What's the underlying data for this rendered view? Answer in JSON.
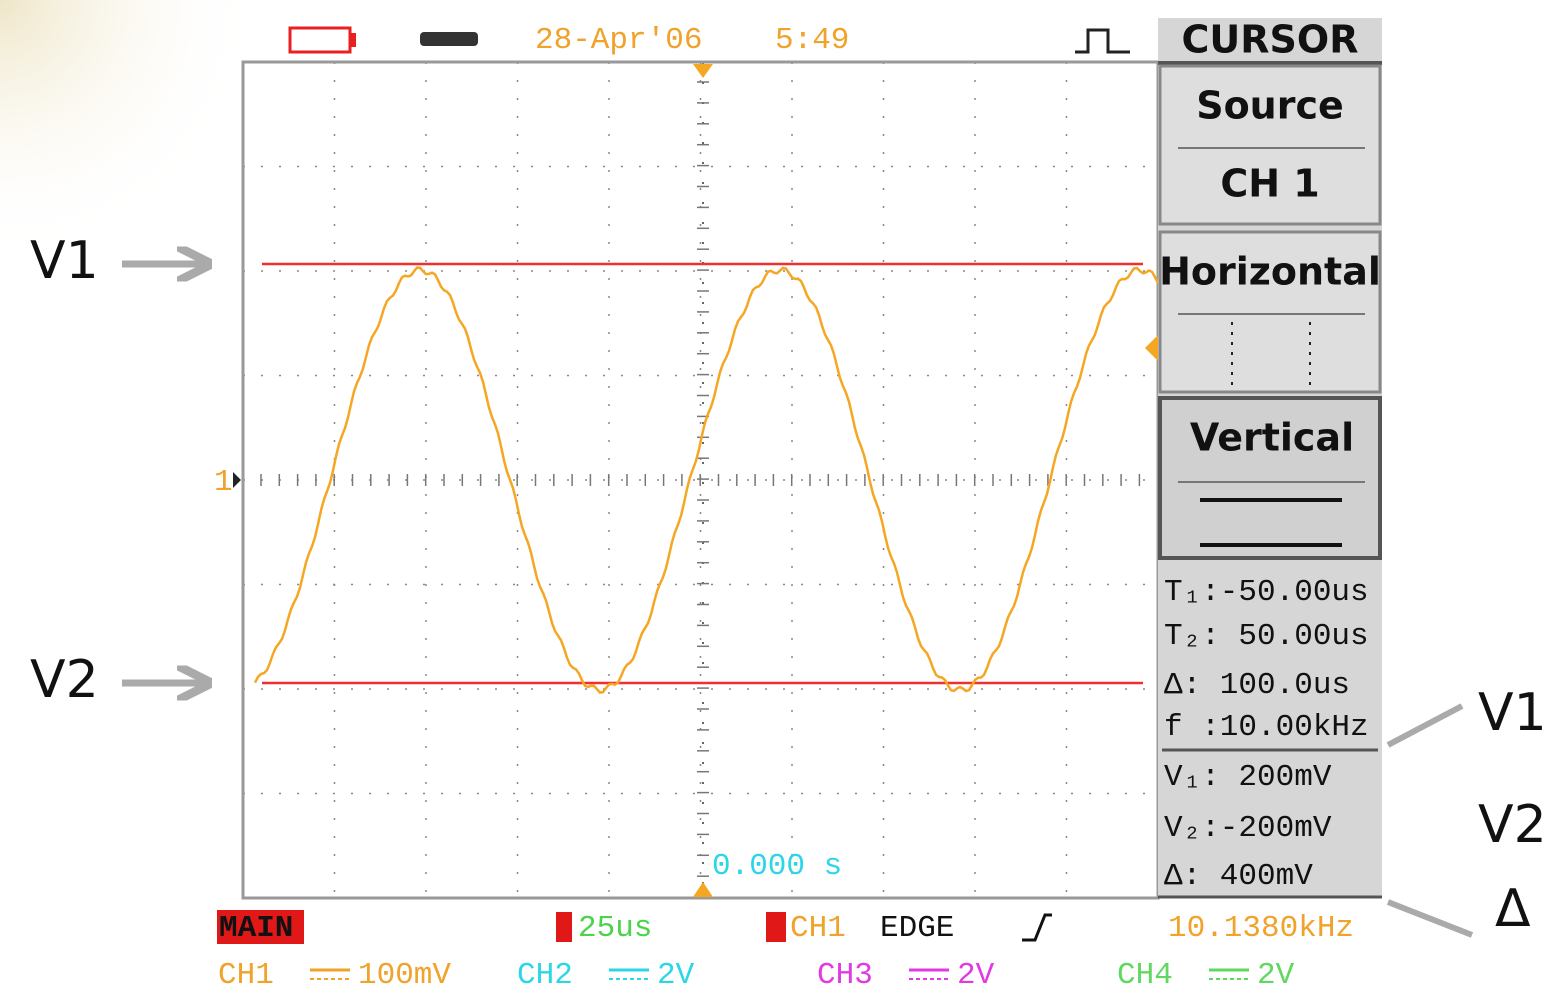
{
  "header": {
    "date": "28-Apr'06",
    "time": "5:49",
    "mode": "CURSOR"
  },
  "menu": {
    "source_label": "Source",
    "source_value": "CH 1",
    "horizontal": "Horizontal",
    "vertical": "Vertical"
  },
  "readouts": {
    "time": [
      "T₁:-50.00us",
      "T₂: 50.00us",
      "Δ: 100.0us",
      "f :10.00kHz"
    ],
    "voltage": [
      "V₁: 200mV",
      "V₂:-200mV",
      "Δ: 400mV"
    ]
  },
  "screen": {
    "trigger_time": "0.000 s",
    "channel_marker": "1"
  },
  "status": {
    "mode": "MAIN",
    "timebase": "25us",
    "trigger_source": "CH1",
    "trigger_type": "EDGE",
    "frequency": "10.1380kHz"
  },
  "channels": [
    {
      "name": "CH1",
      "scale": "100mV"
    },
    {
      "name": "CH2",
      "scale": "2V"
    },
    {
      "name": "CH3",
      "scale": "2V"
    },
    {
      "name": "CH4",
      "scale": "2V"
    }
  ],
  "annotations": {
    "left": [
      "V1",
      "V2"
    ],
    "right": [
      "V1",
      "V2",
      "Δ"
    ]
  }
}
